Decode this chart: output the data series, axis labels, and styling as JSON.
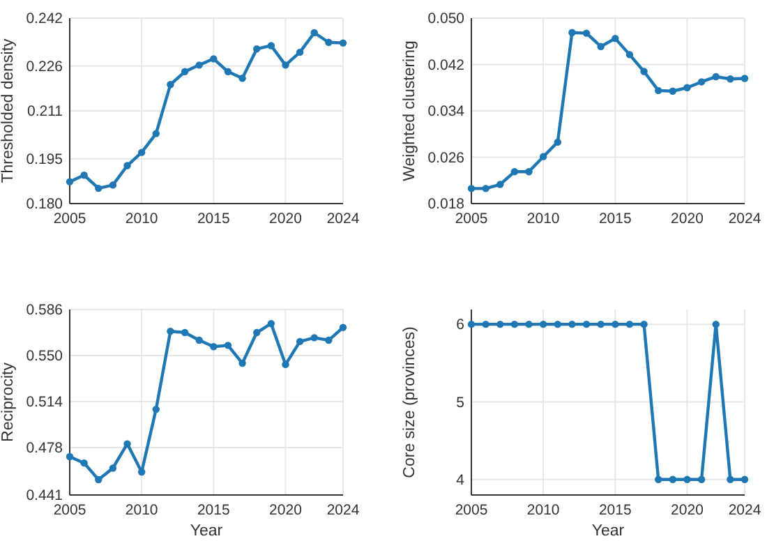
{
  "chart_data": [
    {
      "type": "line",
      "ylabel": "Thresholded density",
      "x": [
        2005,
        2006,
        2007,
        2008,
        2009,
        2010,
        2011,
        2012,
        2013,
        2014,
        2015,
        2016,
        2017,
        2018,
        2019,
        2020,
        2021,
        2022,
        2023,
        2024
      ],
      "xlim": [
        2005,
        2024
      ],
      "xticks": [
        2005,
        2010,
        2015,
        2020,
        2024
      ],
      "ylim": [
        0.18,
        0.242
      ],
      "yticks": [
        {
          "value": 0.18,
          "label": "0.180"
        },
        0.195,
        0.211,
        0.226,
        0.242
      ],
      "grid": true,
      "marker": "circle",
      "line_style": "solid",
      "series": [
        {
          "color": "#1f77b4",
          "values": [
            0.1873,
            0.1895,
            0.1851,
            0.1862,
            0.1927,
            0.1971,
            0.2034,
            0.2198,
            0.2241,
            0.2263,
            0.2284,
            0.2241,
            0.2219,
            0.2317,
            0.2328,
            0.2263,
            0.2306,
            0.2371,
            0.2339,
            0.2337
          ]
        }
      ]
    },
    {
      "type": "line",
      "ylabel": "Weighted clustering",
      "x": [
        2005,
        2006,
        2007,
        2008,
        2009,
        2010,
        2011,
        2012,
        2013,
        2014,
        2015,
        2016,
        2017,
        2018,
        2019,
        2020,
        2021,
        2022,
        2023,
        2024
      ],
      "xlim": [
        2005,
        2024
      ],
      "xticks": [
        2005,
        2010,
        2015,
        2020,
        2024
      ],
      "ylim": [
        0.018,
        0.05
      ],
      "yticks": [
        0.018,
        0.026,
        0.034,
        0.042,
        {
          "value": 0.05,
          "label": "0.050"
        }
      ],
      "grid": true,
      "marker": "circle",
      "line_style": "solid",
      "series": [
        {
          "color": "#1f77b4",
          "values": [
            0.0206,
            0.0206,
            0.0213,
            0.0235,
            0.0235,
            0.0261,
            0.0286,
            0.0475,
            0.0474,
            0.0451,
            0.0465,
            0.0437,
            0.0408,
            0.0375,
            0.0374,
            0.038,
            0.039,
            0.0399,
            0.0395,
            0.0396
          ]
        }
      ]
    },
    {
      "type": "line",
      "xlabel": "Year",
      "ylabel": "Reciprocity",
      "x": [
        2005,
        2006,
        2007,
        2008,
        2009,
        2010,
        2011,
        2012,
        2013,
        2014,
        2015,
        2016,
        2017,
        2018,
        2019,
        2020,
        2021,
        2022,
        2023,
        2024
      ],
      "xlim": [
        2005,
        2024
      ],
      "xticks": [
        2005,
        2010,
        2015,
        2020,
        2024
      ],
      "ylim": [
        0.441,
        0.586
      ],
      "yticks": [
        0.441,
        0.478,
        0.514,
        {
          "value": 0.55,
          "label": "0.550"
        },
        0.586
      ],
      "grid": true,
      "marker": "circle",
      "line_style": "solid",
      "series": [
        {
          "color": "#1f77b4",
          "values": [
            0.471,
            0.466,
            0.453,
            0.462,
            0.481,
            0.459,
            0.508,
            0.569,
            0.568,
            0.562,
            0.557,
            0.558,
            0.544,
            0.568,
            0.575,
            0.543,
            0.561,
            0.564,
            0.562,
            0.572
          ]
        }
      ]
    },
    {
      "type": "line",
      "xlabel": "Year",
      "ylabel": "Core size (provinces)",
      "x": [
        2005,
        2006,
        2007,
        2008,
        2009,
        2010,
        2011,
        2012,
        2013,
        2014,
        2015,
        2016,
        2017,
        2018,
        2019,
        2020,
        2021,
        2022,
        2023,
        2024
      ],
      "xlim": [
        2005,
        2024
      ],
      "xticks": [
        2005,
        2010,
        2015,
        2020,
        2024
      ],
      "ylim": [
        3.8,
        6.19
      ],
      "yticks": [
        4,
        5,
        6
      ],
      "grid": true,
      "marker": "circle",
      "line_style": "solid",
      "series": [
        {
          "color": "#1f77b4",
          "values": [
            6,
            6,
            6,
            6,
            6,
            6,
            6,
            6,
            6,
            6,
            6,
            6,
            6,
            4,
            4,
            4,
            4,
            6,
            4,
            4
          ]
        }
      ]
    }
  ]
}
